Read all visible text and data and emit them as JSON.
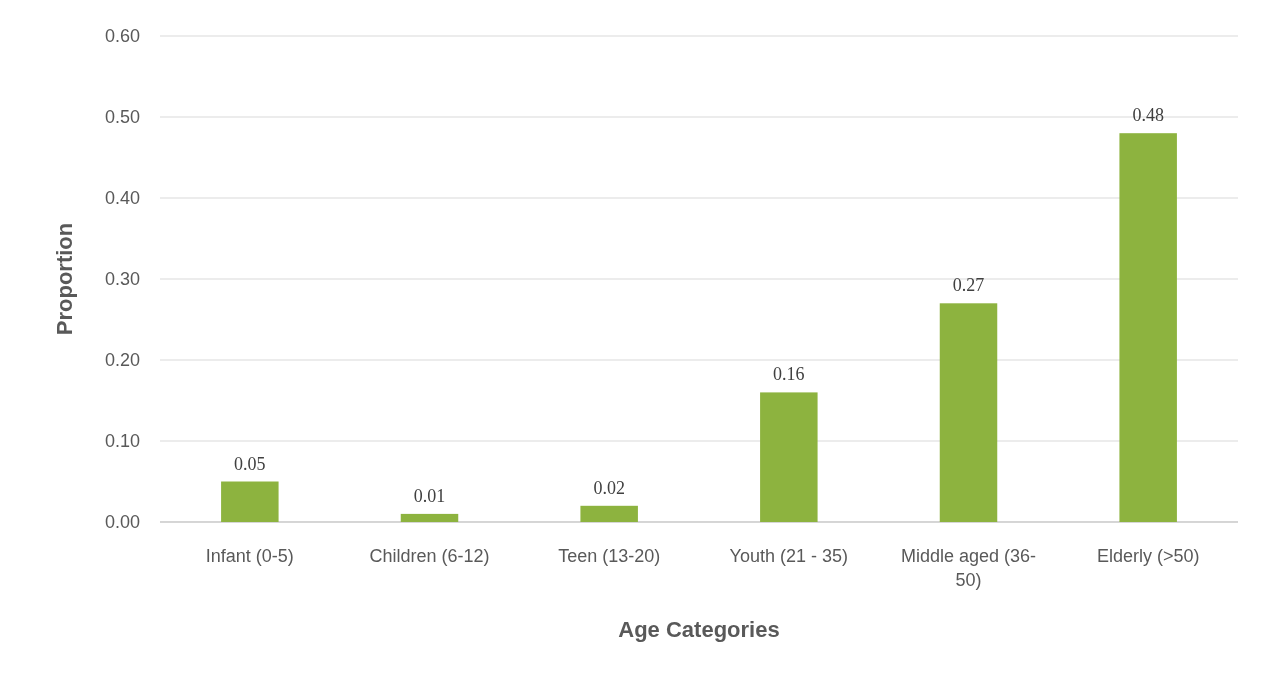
{
  "chart_data": {
    "type": "bar",
    "xlabel": "Age Categories",
    "ylabel": "Proportion",
    "categories": [
      "Infant (0-5)",
      "Children (6-12)",
      "Teen (13-20)",
      "Youth (21 - 35)",
      "Middle aged (36-50)",
      "Elderly (>50)"
    ],
    "values": [
      0.05,
      0.01,
      0.02,
      0.16,
      0.27,
      0.48
    ],
    "color": "#8db33f",
    "data_labels": true,
    "ylim": [
      0,
      0.6
    ],
    "yticks": [
      {
        "value": 0,
        "label": "0.00"
      },
      {
        "value": 0.1,
        "label": "0.10"
      },
      {
        "value": 0.2,
        "label": "0.20"
      },
      {
        "value": 0.3,
        "label": "0.30"
      },
      {
        "value": 0.4,
        "label": "0.40"
      },
      {
        "value": 0.5,
        "label": "0.50"
      },
      {
        "value": 0.6,
        "label": "0.60"
      }
    ],
    "grid": "y"
  }
}
